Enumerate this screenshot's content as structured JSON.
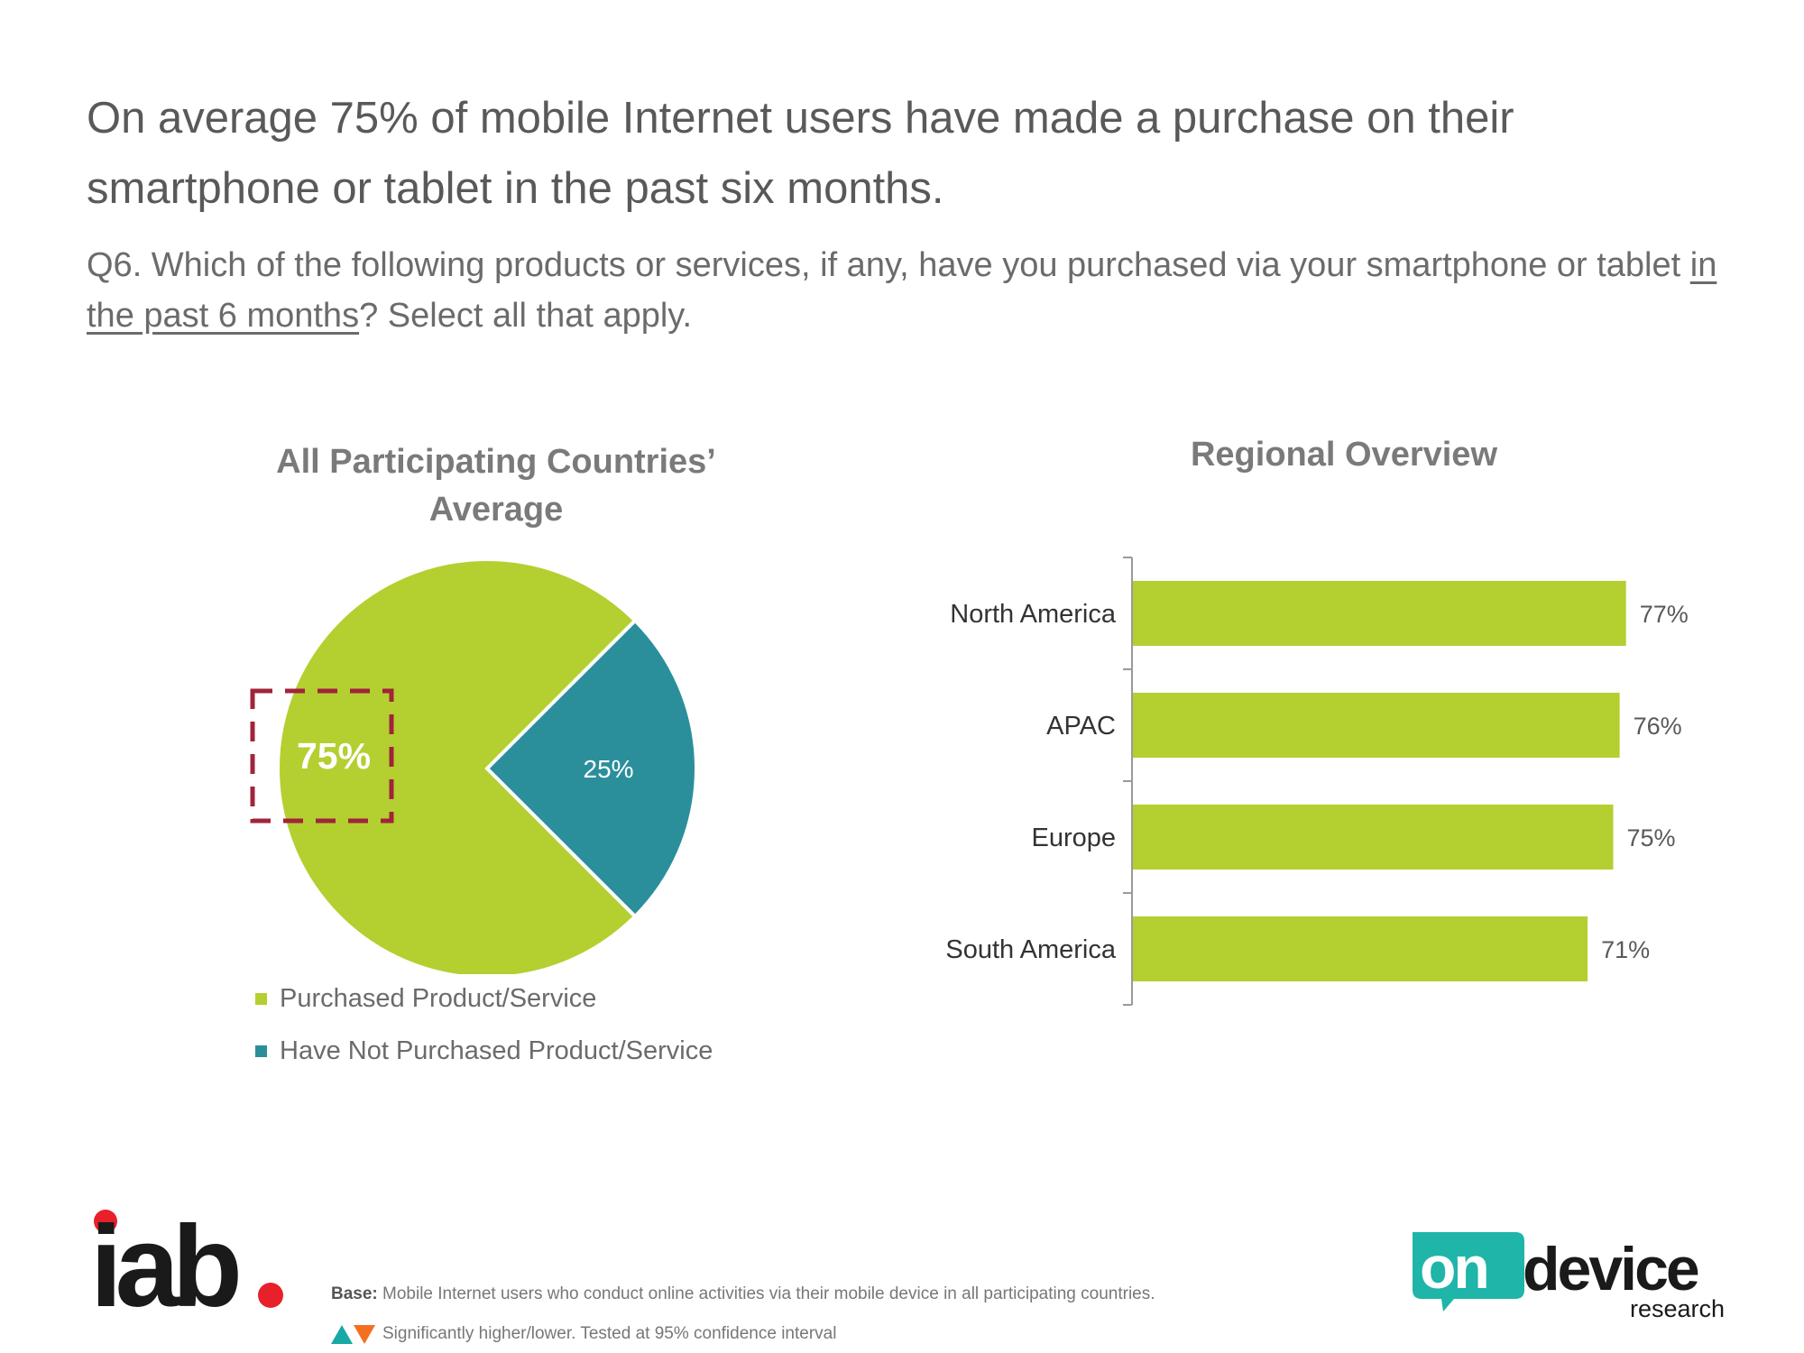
{
  "headline": "On average 75% of mobile Internet users have made a purchase on their smartphone or tablet in the past six months.",
  "question": {
    "before": "Q6. Which of the following products or services, if any, have you purchased via your smartphone or tablet ",
    "underlined": "in the past 6 months",
    "after": "? Select all that apply."
  },
  "colors": {
    "purchased": "#b4cf30",
    "not_purchased": "#2a8f9b",
    "highlight_box": "#a0243a"
  },
  "chart_data": [
    {
      "type": "pie",
      "title": "All Participating Countries’ Average",
      "slices": [
        {
          "label": "Purchased Product/Service",
          "value": 75,
          "display": "75%",
          "color": "#b4cf30"
        },
        {
          "label": "Have Not Purchased Product/Service",
          "value": 25,
          "display": "25%",
          "color": "#2a8f9b"
        }
      ],
      "highlighted_value": "75%",
      "legend_position": "bottom"
    },
    {
      "type": "bar",
      "orientation": "horizontal",
      "title": "Regional Overview",
      "categories": [
        "North America",
        "APAC",
        "Europe",
        "South America"
      ],
      "values": [
        77,
        76,
        75,
        71
      ],
      "labels": [
        "77%",
        "76%",
        "75%",
        "71%"
      ],
      "color": "#b4cf30",
      "xlim": [
        0,
        100
      ]
    }
  ],
  "footer": {
    "base_label": "Base:",
    "base_text": " Mobile Internet users who conduct online activities via their mobile device in all participating countries.",
    "significance_text": "Significantly higher/lower. Tested at 95% confidence interval"
  },
  "logos": {
    "iab": "iab.",
    "ondevice_on": "on",
    "ondevice_device": "device",
    "ondevice_research": "research"
  }
}
